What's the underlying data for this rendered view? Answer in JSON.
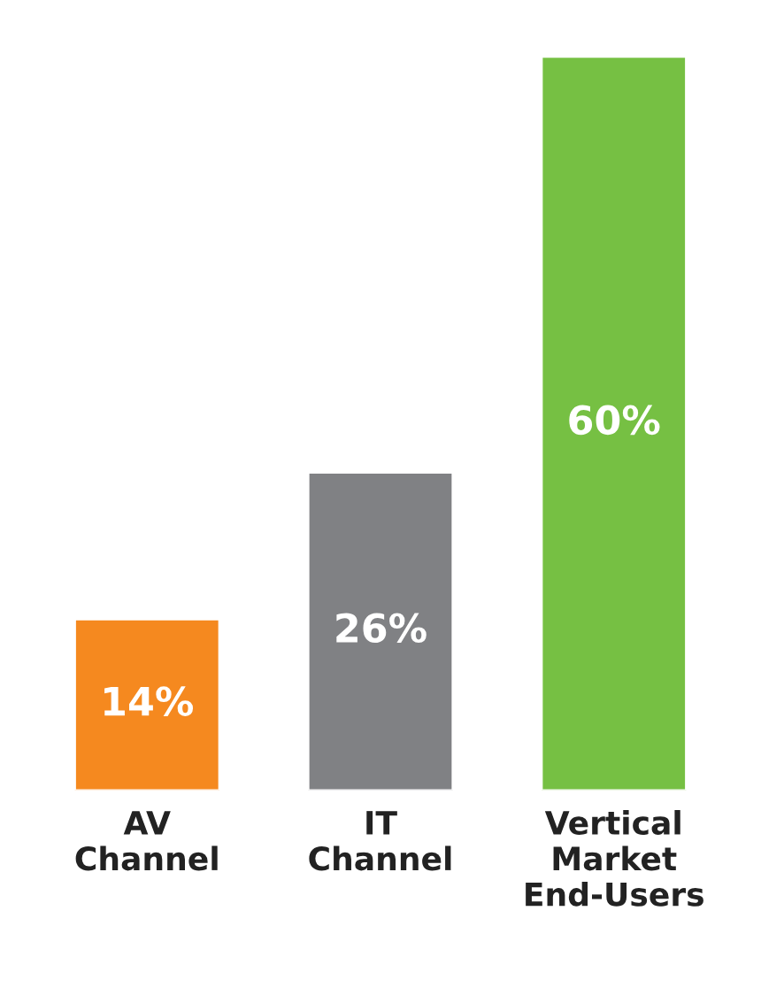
{
  "chart_data": {
    "type": "bar",
    "categories": [
      "AV\nChannel",
      "IT\nChannel",
      "Vertical\nMarket\nEnd-Users"
    ],
    "values": [
      14,
      26,
      60
    ],
    "colors": [
      "#f5891f",
      "#808184",
      "#76c043"
    ],
    "data_labels": true,
    "value_labels": [
      "14%",
      "26%",
      "60%"
    ],
    "grid": false,
    "legend": false
  }
}
